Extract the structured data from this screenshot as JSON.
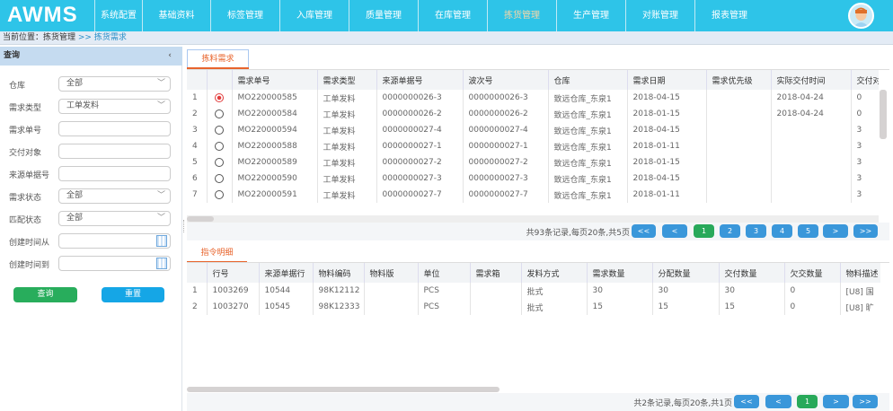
{
  "header": {
    "logo": "AWMS",
    "nav": [
      "系统配置",
      "基础资料",
      "标签管理",
      "入库管理",
      "质量管理",
      "在库管理",
      "拣货管理",
      "生产管理",
      "对账管理",
      "报表管理"
    ],
    "active_nav": "拣货管理"
  },
  "breadcrumb": {
    "prefix": "当前位置：",
    "parent": "拣货管理",
    "sep": " >> ",
    "current": "拣货需求"
  },
  "query": {
    "title": "查询",
    "collapse": "‹",
    "fields": [
      {
        "label": "仓库",
        "value": "全部",
        "type": "select"
      },
      {
        "label": "需求类型",
        "value": "工单发料",
        "type": "select"
      },
      {
        "label": "需求单号",
        "value": "",
        "type": "text"
      },
      {
        "label": "交付对象",
        "value": "",
        "type": "text"
      },
      {
        "label": "来源单据号",
        "value": "",
        "type": "text"
      },
      {
        "label": "需求状态",
        "value": "全部",
        "type": "select"
      },
      {
        "label": "匹配状态",
        "value": "全部",
        "type": "select"
      },
      {
        "label": "创建时间从",
        "value": "",
        "type": "date"
      },
      {
        "label": "创建时间到",
        "value": "",
        "type": "date"
      }
    ],
    "search_btn": "查询",
    "reset_btn": "重置",
    "search_color": "#28ad5c",
    "reset_color": "#15a6e6"
  },
  "top": {
    "tab": "拣料需求",
    "columns": [
      "",
      "",
      "需求单号",
      "需求类型",
      "来源单据号",
      "波次号",
      "仓库",
      "需求日期",
      "需求优先级",
      "实际交付时间",
      "交付对"
    ],
    "rows": [
      [
        "1",
        "on",
        "MO220000585",
        "工单发料",
        "0000000026-3",
        "0000000026-3",
        "致远仓库_东泉1",
        "2018-04-15",
        "",
        "2018-04-24",
        "0"
      ],
      [
        "2",
        "off",
        "MO220000584",
        "工单发料",
        "0000000026-2",
        "0000000026-2",
        "致远仓库_东泉1",
        "2018-01-15",
        "",
        "2018-04-24",
        "0"
      ],
      [
        "3",
        "off",
        "MO220000594",
        "工单发料",
        "0000000027-4",
        "0000000027-4",
        "致远仓库_东泉1",
        "2018-04-15",
        "",
        "",
        "3"
      ],
      [
        "4",
        "off",
        "MO220000588",
        "工单发料",
        "0000000027-1",
        "0000000027-1",
        "致远仓库_东泉1",
        "2018-01-11",
        "",
        "",
        "3"
      ],
      [
        "5",
        "off",
        "MO220000589",
        "工单发料",
        "0000000027-2",
        "0000000027-2",
        "致远仓库_东泉1",
        "2018-01-15",
        "",
        "",
        "3"
      ],
      [
        "6",
        "off",
        "MO220000590",
        "工单发料",
        "0000000027-3",
        "0000000027-3",
        "致远仓库_东泉1",
        "2018-04-15",
        "",
        "",
        "3"
      ],
      [
        "7",
        "off",
        "MO220000591",
        "工单发料",
        "0000000027-7",
        "0000000027-7",
        "致远仓库_东泉1",
        "2018-01-11",
        "",
        "",
        "3"
      ]
    ],
    "pager": {
      "info": "共93条记录,每页20条,共5页",
      "buttons": [
        "<<",
        "<",
        "1",
        "2",
        "3",
        "4",
        "5",
        ">",
        ">>"
      ],
      "current": "1"
    }
  },
  "bottom": {
    "tab": "指令明细",
    "columns": [
      "",
      "行号",
      "来源单据行",
      "物料编码",
      "物料版",
      "单位",
      "需求箱",
      "发料方式",
      "需求数量",
      "分配数量",
      "交付数量",
      "欠交数量",
      "物料描述"
    ],
    "rows": [
      [
        "1",
        "1003269",
        "10544",
        "98K12112",
        "",
        "PCS",
        "",
        "批式",
        "30",
        "30",
        "30",
        "0",
        "[U8] 国"
      ],
      [
        "2",
        "1003270",
        "10545",
        "98K12333",
        "",
        "PCS",
        "",
        "批式",
        "15",
        "15",
        "15",
        "0",
        "[U8] 旷"
      ]
    ],
    "pager": {
      "info": "共2条记录,每页20条,共1页",
      "buttons": [
        "<<",
        "<",
        "1",
        ">",
        ">>"
      ],
      "current": "1"
    }
  }
}
